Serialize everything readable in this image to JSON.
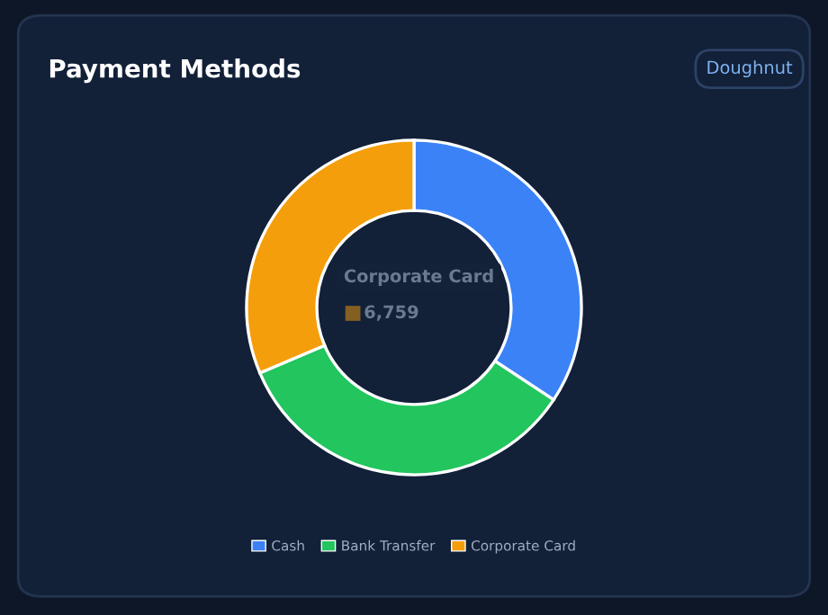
{
  "chart_data": {
    "type": "donut",
    "title": "Payment Methods",
    "categories": [
      "Cash",
      "Bank Transfer",
      "Corporate Card"
    ],
    "values": [
      34.3,
      34.3,
      31.4
    ],
    "colors": [
      "#3b82f6",
      "#22c55e",
      "#f59e0b"
    ],
    "legend": "bottom",
    "annotations": [
      "Doughnut",
      "Corporate Card",
      "6,759"
    ]
  }
}
